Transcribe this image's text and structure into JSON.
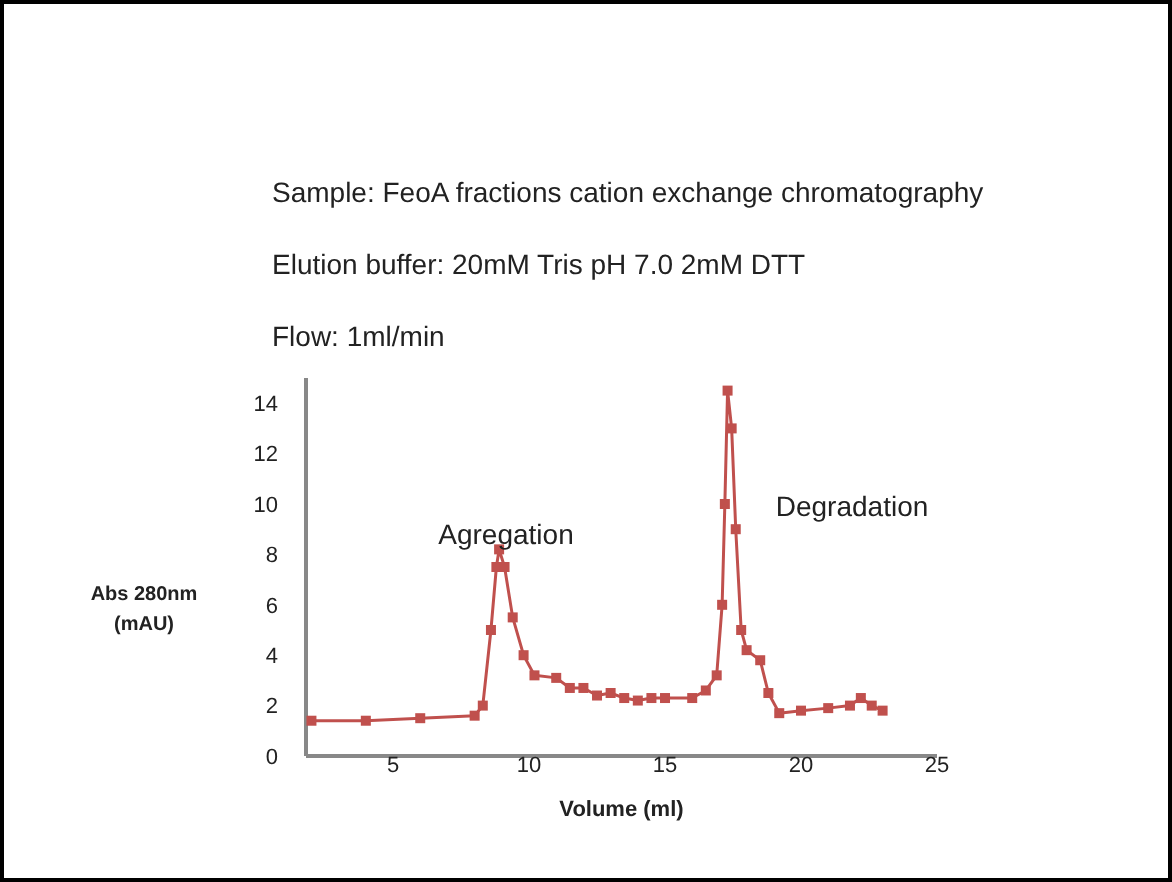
{
  "chart_data": {
    "type": "line",
    "xlabel": "Volume (ml)",
    "ylabel": "Abs 280nm (mAU)",
    "annotations": [
      "Sample: FeoA fractions cation exchange chromatography",
      "Elution buffer: 20mM Tris pH 7.0 2mM DTT",
      "Flow: 1ml/min",
      "Agregation",
      "Degradation"
    ],
    "series": [
      {
        "color": "#c0504d",
        "x": [
          2,
          4,
          6,
          8,
          8.3,
          8.6,
          8.8,
          8.9,
          9.1,
          9.4,
          9.8,
          10.2,
          11,
          11.5,
          12,
          12.5,
          13,
          13.5,
          14,
          14.5,
          15,
          16,
          16.5,
          16.9,
          17.1,
          17.2,
          17.3,
          17.45,
          17.6,
          17.8,
          18,
          18.5,
          18.8,
          19.2,
          20,
          21,
          21.8,
          22.2,
          22.6,
          23
        ],
        "values": [
          1.4,
          1.4,
          1.5,
          1.6,
          2,
          5,
          7.5,
          8.2,
          7.5,
          5.5,
          4,
          3.2,
          3.1,
          2.7,
          2.7,
          2.4,
          2.5,
          2.3,
          2.2,
          2.3,
          2.3,
          2.3,
          2.6,
          3.2,
          6,
          10,
          14.5,
          13,
          9,
          5,
          4.2,
          3.8,
          2.5,
          1.7,
          1.8,
          1.9,
          2,
          2.3,
          2,
          1.8
        ]
      }
    ],
    "xlim": [
      1.8,
      25
    ],
    "xticks": [
      5,
      10,
      15,
      20,
      25
    ],
    "ylim": [
      0,
      15
    ],
    "yticks": [
      0,
      2,
      4,
      6,
      8,
      10,
      12,
      14
    ],
    "marker": "square",
    "line_style": "solid"
  }
}
